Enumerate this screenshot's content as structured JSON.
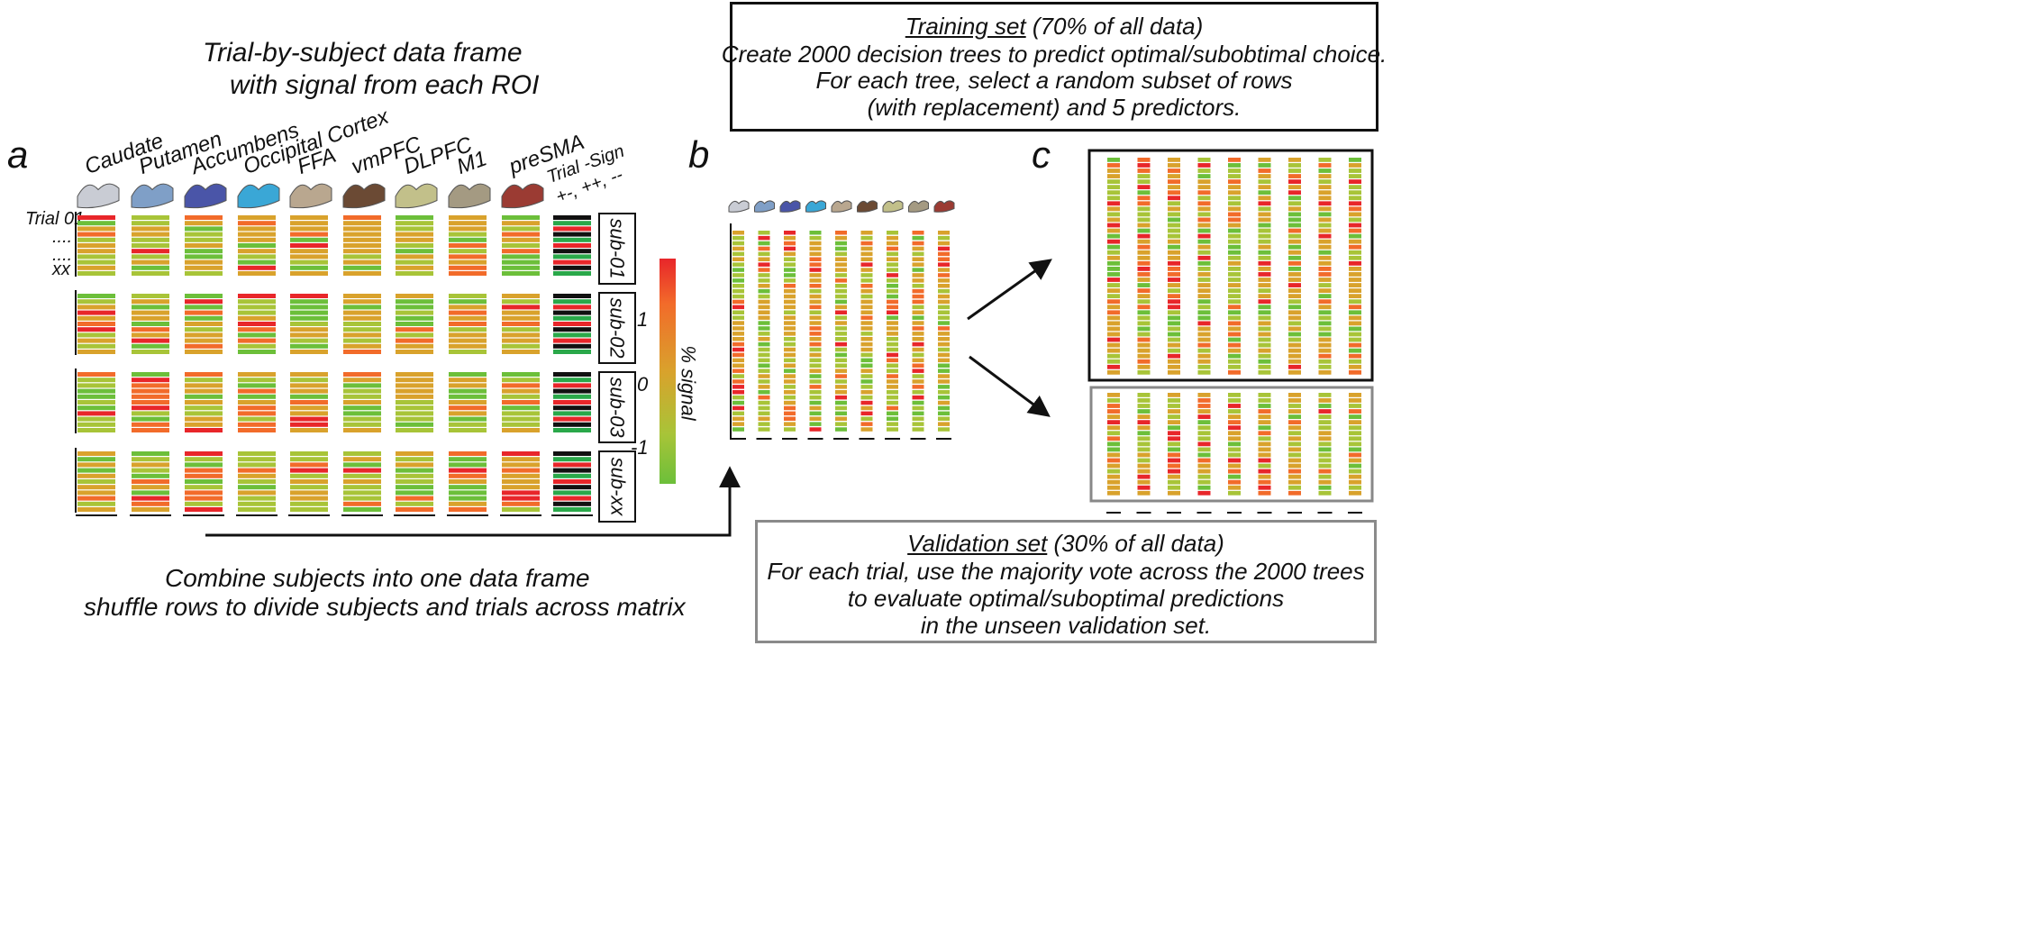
{
  "panel_a": {
    "letter": "a",
    "title_line1": "Trial-by-subject data frame",
    "title_line2": "with signal from each ROI",
    "rois": [
      "Caudate",
      "Putamen",
      "Accumbens",
      "Occipital Cortex",
      "FFA",
      "vmPFC",
      "DLPFC",
      "M1",
      "preSMA"
    ],
    "roi_colors": [
      "#c9ccd4",
      "#7f9fc7",
      "#4a55a8",
      "#3aa7d6",
      "#b9a78f",
      "#6b4a34",
      "#c2c08a",
      "#a49a82",
      "#9b3b33"
    ],
    "trial_sign_label_line1": "Trial -Sign",
    "trial_sign_label_line2": "+-, ++, --",
    "row_labels": [
      "Trial 01",
      "....",
      "....",
      "xx"
    ],
    "subjects": [
      "sub-01",
      "sub-02",
      "sub-03",
      "sub-xx"
    ]
  },
  "colorbar": {
    "label": "% signal",
    "ticks": [
      "1",
      "0",
      "-1"
    ],
    "colors": [
      "#e8262a",
      "#f26b2a",
      "#d9a22c",
      "#a8c438",
      "#6cbf3a"
    ]
  },
  "combine_caption_line1": "Combine subjects into one data frame",
  "combine_caption_line2": "shuffle rows to divide subjects and trials across matrix",
  "panel_b": {
    "letter": "b"
  },
  "panel_c": {
    "letter": "c"
  },
  "training_box": {
    "title": "Training set",
    "title_suffix": " (70% of all data)",
    "line2": "Create 2000 decision trees to predict optimal/subobtimal choice.",
    "line3": "For each tree, select a random subset of rows",
    "line4": "(with replacement) and 5 predictors."
  },
  "validation_box": {
    "title": "Validation set",
    "title_suffix": " (30% of all data)",
    "line2": "For each trial, use the majority vote across the 2000 trees",
    "line3": "to evaluate optimal/suboptimal predictions",
    "line4": "in the unseen validation set."
  }
}
